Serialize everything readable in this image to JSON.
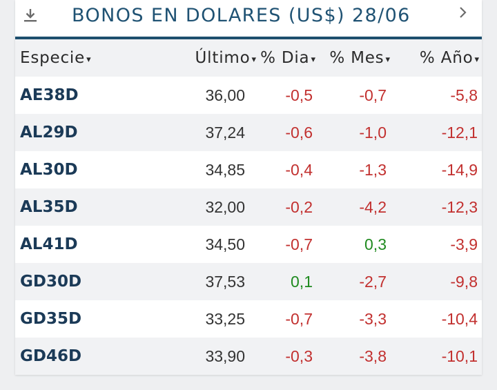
{
  "header": {
    "title": "BONOS EN DOLARES (US$) 28/06",
    "icon_left": "download-icon",
    "icon_right": "chevron-right-icon"
  },
  "columns": {
    "especie": "Especie",
    "ultimo": "Último",
    "dia": "% Dia",
    "mes": "% Mes",
    "anio": "% Año",
    "sort_arrow": "▾"
  },
  "colors": {
    "title": "#1f5273",
    "rule": "#1d4f6d",
    "negative": "#c2302f",
    "positive": "#1f8a1f"
  },
  "rows": [
    {
      "especie": "AE38D",
      "ultimo": "36,00",
      "dia": "-0,5",
      "mes": "-0,7",
      "anio": "-5,8"
    },
    {
      "especie": "AL29D",
      "ultimo": "37,24",
      "dia": "-0,6",
      "mes": "-1,0",
      "anio": "-12,1"
    },
    {
      "especie": "AL30D",
      "ultimo": "34,85",
      "dia": "-0,4",
      "mes": "-1,3",
      "anio": "-14,9"
    },
    {
      "especie": "AL35D",
      "ultimo": "32,00",
      "dia": "-0,2",
      "mes": "-4,2",
      "anio": "-12,3"
    },
    {
      "especie": "AL41D",
      "ultimo": "34,50",
      "dia": "-0,7",
      "mes": "0,3",
      "anio": "-3,9"
    },
    {
      "especie": "GD30D",
      "ultimo": "37,53",
      "dia": "0,1",
      "mes": "-2,7",
      "anio": "-9,8"
    },
    {
      "especie": "GD35D",
      "ultimo": "33,25",
      "dia": "-0,7",
      "mes": "-3,3",
      "anio": "-10,4"
    },
    {
      "especie": "GD46D",
      "ultimo": "33,90",
      "dia": "-0,3",
      "mes": "-3,8",
      "anio": "-10,1"
    }
  ]
}
